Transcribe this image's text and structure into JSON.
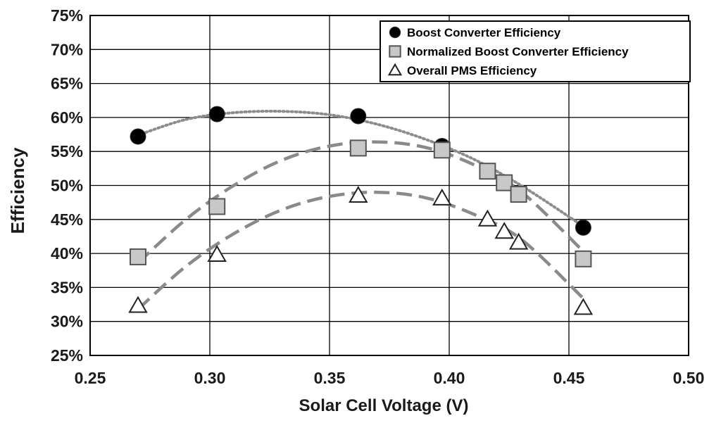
{
  "chart_data": {
    "type": "scatter",
    "title": "",
    "xlabel": "Solar Cell Voltage (V)",
    "ylabel": "Efficiency",
    "xlim": [
      0.25,
      0.5
    ],
    "ylim": [
      25,
      75
    ],
    "grid": true,
    "legend_position": "top-right",
    "x_ticks": [
      "0.25",
      "0.30",
      "0.35",
      "0.40",
      "0.45",
      "0.50"
    ],
    "y_ticks": [
      "25%",
      "30%",
      "35%",
      "40%",
      "45%",
      "50%",
      "55%",
      "60%",
      "65%",
      "70%",
      "75%"
    ],
    "series": [
      {
        "name": "Boost Converter Efficiency",
        "marker": "circle",
        "trendline": "dotted",
        "x": [
          0.27,
          0.303,
          0.362,
          0.397,
          0.456
        ],
        "y": [
          57.2,
          60.5,
          60.2,
          55.8,
          43.8
        ],
        "trend": [
          [
            0.27,
            57.4
          ],
          [
            0.29,
            59.7
          ],
          [
            0.31,
            60.7
          ],
          [
            0.33,
            60.9
          ],
          [
            0.35,
            60.4
          ],
          [
            0.37,
            59.0
          ],
          [
            0.39,
            56.8
          ],
          [
            0.41,
            53.9
          ],
          [
            0.43,
            50.0
          ],
          [
            0.456,
            44.0
          ]
        ]
      },
      {
        "name": "Normalized Boost Converter Efficiency",
        "marker": "square",
        "trendline": "dashed",
        "x": [
          0.27,
          0.303,
          0.362,
          0.397,
          0.416,
          0.423,
          0.429,
          0.456
        ],
        "y": [
          39.5,
          46.9,
          55.5,
          55.2,
          52.1,
          50.4,
          48.7,
          39.2
        ],
        "trend": [
          [
            0.27,
            38.6
          ],
          [
            0.29,
            45.0
          ],
          [
            0.31,
            50.0
          ],
          [
            0.33,
            53.7
          ],
          [
            0.35,
            55.8
          ],
          [
            0.37,
            56.4
          ],
          [
            0.39,
            55.6
          ],
          [
            0.41,
            53.1
          ],
          [
            0.43,
            49.1
          ],
          [
            0.456,
            40.3
          ]
        ]
      },
      {
        "name": "Overall PMS Efficiency",
        "marker": "triangle",
        "trendline": "dashed",
        "x": [
          0.27,
          0.303,
          0.362,
          0.397,
          0.416,
          0.423,
          0.429,
          0.456
        ],
        "y": [
          32.3,
          39.8,
          48.5,
          48.1,
          45.0,
          43.2,
          41.6,
          32.0
        ],
        "trend": [
          [
            0.27,
            31.8
          ],
          [
            0.29,
            38.1
          ],
          [
            0.31,
            42.9
          ],
          [
            0.33,
            46.4
          ],
          [
            0.35,
            48.4
          ],
          [
            0.37,
            49.0
          ],
          [
            0.39,
            48.2
          ],
          [
            0.41,
            45.8
          ],
          [
            0.43,
            42.1
          ],
          [
            0.456,
            33.4
          ]
        ]
      }
    ]
  }
}
